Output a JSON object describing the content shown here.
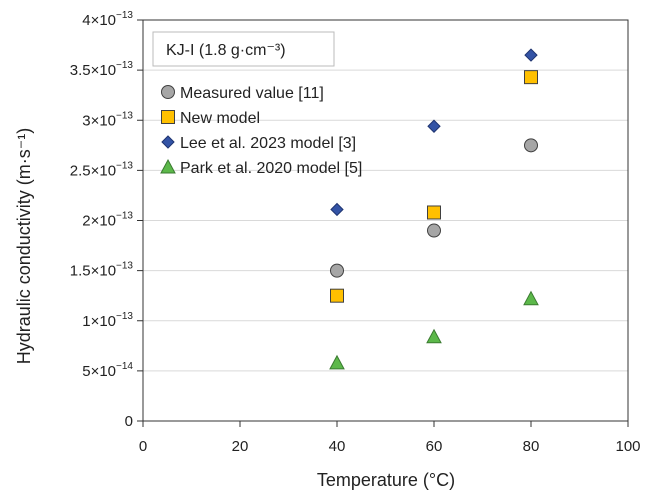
{
  "chart_data": {
    "type": "scatter",
    "title": "",
    "annotation": "KJ-I (1.8 g·cm⁻³)",
    "xlabel": "Temperature (°C)",
    "ylabel": "Hydraulic conductivity (m·s⁻¹)",
    "xlim": [
      0,
      100
    ],
    "ylim": [
      0,
      4e-13
    ],
    "x_ticks": [
      0,
      20,
      40,
      60,
      80,
      100
    ],
    "x_tick_labels": [
      "0",
      "20",
      "40",
      "60",
      "80",
      "100"
    ],
    "y_ticks": [
      0,
      5e-14,
      1e-13,
      1.5e-13,
      2e-13,
      2.5e-13,
      3e-13,
      3.5e-13,
      4e-13
    ],
    "y_tick_labels": [
      {
        "mantissa": "0",
        "exponent": ""
      },
      {
        "mantissa": "5×10",
        "exponent": "−14"
      },
      {
        "mantissa": "1×10",
        "exponent": "−13"
      },
      {
        "mantissa": "1.5×10",
        "exponent": "−13"
      },
      {
        "mantissa": "2×10",
        "exponent": "−13"
      },
      {
        "mantissa": "2.5×10",
        "exponent": "−13"
      },
      {
        "mantissa": "3×10",
        "exponent": "−13"
      },
      {
        "mantissa": "3.5×10",
        "exponent": "−13"
      },
      {
        "mantissa": "4×10",
        "exponent": "−13"
      }
    ],
    "grid": "horizontal",
    "legend_position": "top-left",
    "series": [
      {
        "name": "Measured value [11]",
        "marker": "circle",
        "color": "#a6a6a6",
        "x": [
          40,
          60,
          80
        ],
        "y": [
          1.5e-13,
          1.9e-13,
          2.75e-13
        ]
      },
      {
        "name": "New model",
        "marker": "square",
        "color": "#ffc000",
        "x": [
          40,
          60,
          80
        ],
        "y": [
          1.25e-13,
          2.08e-13,
          3.43e-13
        ]
      },
      {
        "name": "Lee et al. 2023 model [3]",
        "marker": "diamond",
        "color": "#3353a5",
        "x": [
          40,
          60,
          80
        ],
        "y": [
          2.11e-13,
          2.94e-13,
          3.65e-13
        ]
      },
      {
        "name": "Park et al. 2020 model [5]",
        "marker": "triangle",
        "color": "#5cb84a",
        "x": [
          40,
          60,
          80
        ],
        "y": [
          5.8e-14,
          8.4e-14,
          1.22e-13
        ]
      }
    ]
  }
}
